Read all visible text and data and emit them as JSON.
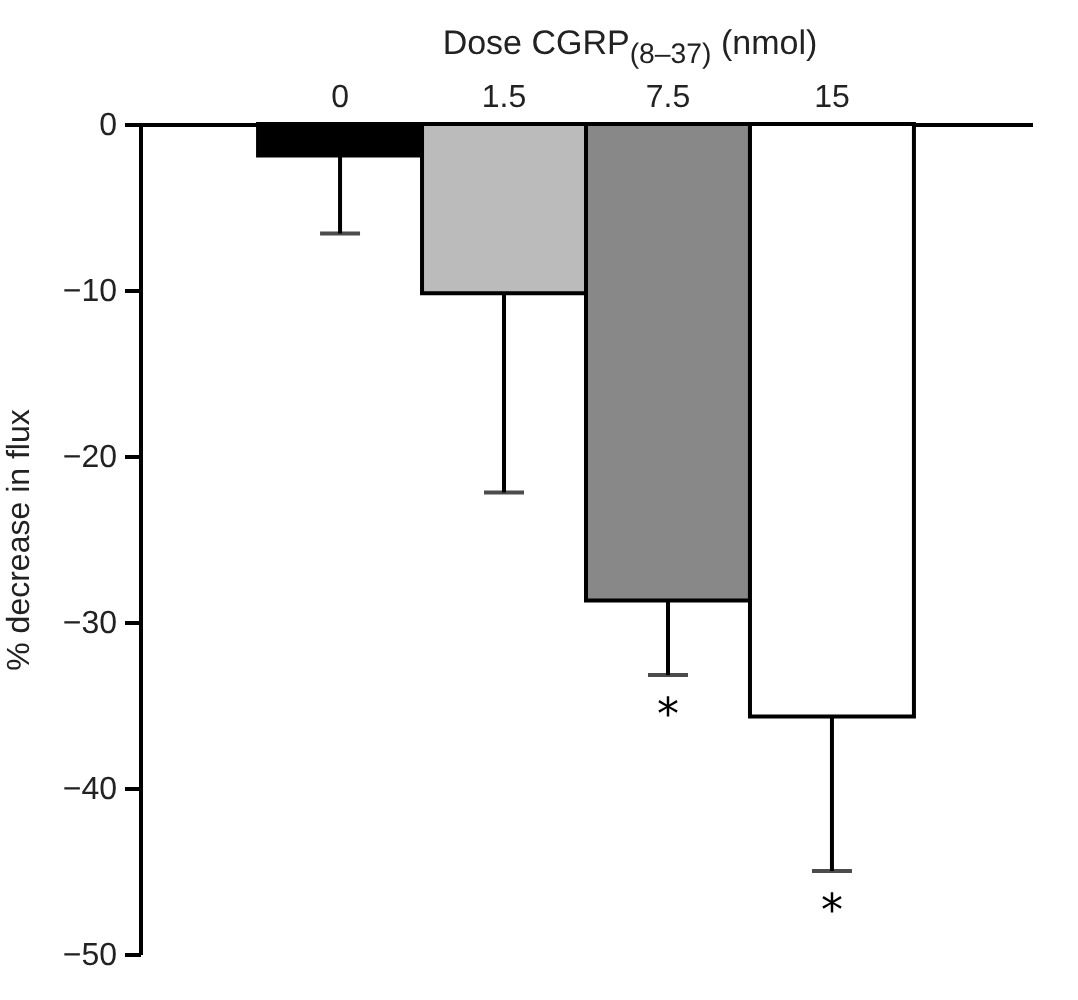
{
  "chart_data": {
    "type": "bar",
    "xlabel": "Dose CGRP$_{(8–37)}$ (nmol)",
    "ylabel": "% decrease in flux",
    "categories": [
      "0",
      "1.5",
      "7.5",
      "15"
    ],
    "values": [
      -1.9,
      -10.2,
      -28.7,
      -35.7
    ],
    "colors": [
      "#000000",
      "#bbbbbb",
      "#888888",
      "#ffffff"
    ],
    "errors": [
      [
        -6.6,
        -1.9
      ],
      [
        -22.2,
        -10.2
      ],
      [
        -33.2,
        -28.7
      ],
      [
        -45,
        -35.7
      ]
    ],
    "ylim": [
      -50,
      0
    ],
    "yticks": [
      0,
      -10,
      -20,
      -30,
      -40,
      -50
    ],
    "grid": false,
    "annotations": [
      {
        "text": "*",
        "x": "7.5",
        "y": -33.2
      },
      {
        "text": "*",
        "x": "15",
        "y": -45
      }
    ]
  }
}
